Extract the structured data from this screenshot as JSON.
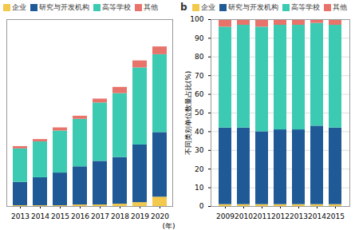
{
  "chart_data": [
    {
      "type": "bar",
      "stacked": true,
      "tick_labels": "x",
      "x_label": "(年)",
      "categories": [
        "2013",
        "2014",
        "2015",
        "2016",
        "2017",
        "2018",
        "2019",
        "2020"
      ],
      "ylim": [
        0,
        240
      ],
      "series": [
        {
          "name": "企业",
          "color": "#f2c94c",
          "values": [
            1,
            1,
            1,
            2,
            2,
            3,
            5,
            12
          ]
        },
        {
          "name": "研究与开发机构",
          "color": "#1f5a96",
          "values": [
            30,
            36,
            42,
            49,
            56,
            60,
            74,
            83
          ]
        },
        {
          "name": "高等学校",
          "color": "#3ccbb2",
          "values": [
            43,
            46,
            54,
            61,
            75,
            82,
            99,
            100
          ]
        },
        {
          "name": "其他",
          "color": "#e8736b",
          "values": [
            3,
            3,
            4,
            4,
            5,
            8,
            9,
            10
          ]
        }
      ]
    },
    {
      "type": "bar",
      "stacked": true,
      "title": "b",
      "y_label": "不同类别单位数量占比(%)",
      "categories": [
        "2009",
        "2010",
        "2011",
        "2012",
        "2013",
        "2014",
        "2015"
      ],
      "ylim": [
        0,
        100
      ],
      "yticks": [
        0,
        10,
        20,
        30,
        40,
        50,
        60,
        70,
        80,
        90,
        100
      ],
      "series": [
        {
          "name": "企业",
          "color": "#f2c94c",
          "values": [
            1,
            1,
            1,
            1,
            1,
            1,
            1
          ]
        },
        {
          "name": "研究与开发机构",
          "color": "#1f5a96",
          "values": [
            41,
            41,
            39,
            40,
            40,
            42,
            41
          ]
        },
        {
          "name": "高等学校",
          "color": "#3ccbb2",
          "values": [
            54,
            55,
            56,
            56,
            56,
            55,
            55
          ]
        },
        {
          "name": "其他",
          "color": "#e8736b",
          "values": [
            4,
            3,
            4,
            3,
            3,
            2,
            3
          ]
        }
      ]
    }
  ]
}
